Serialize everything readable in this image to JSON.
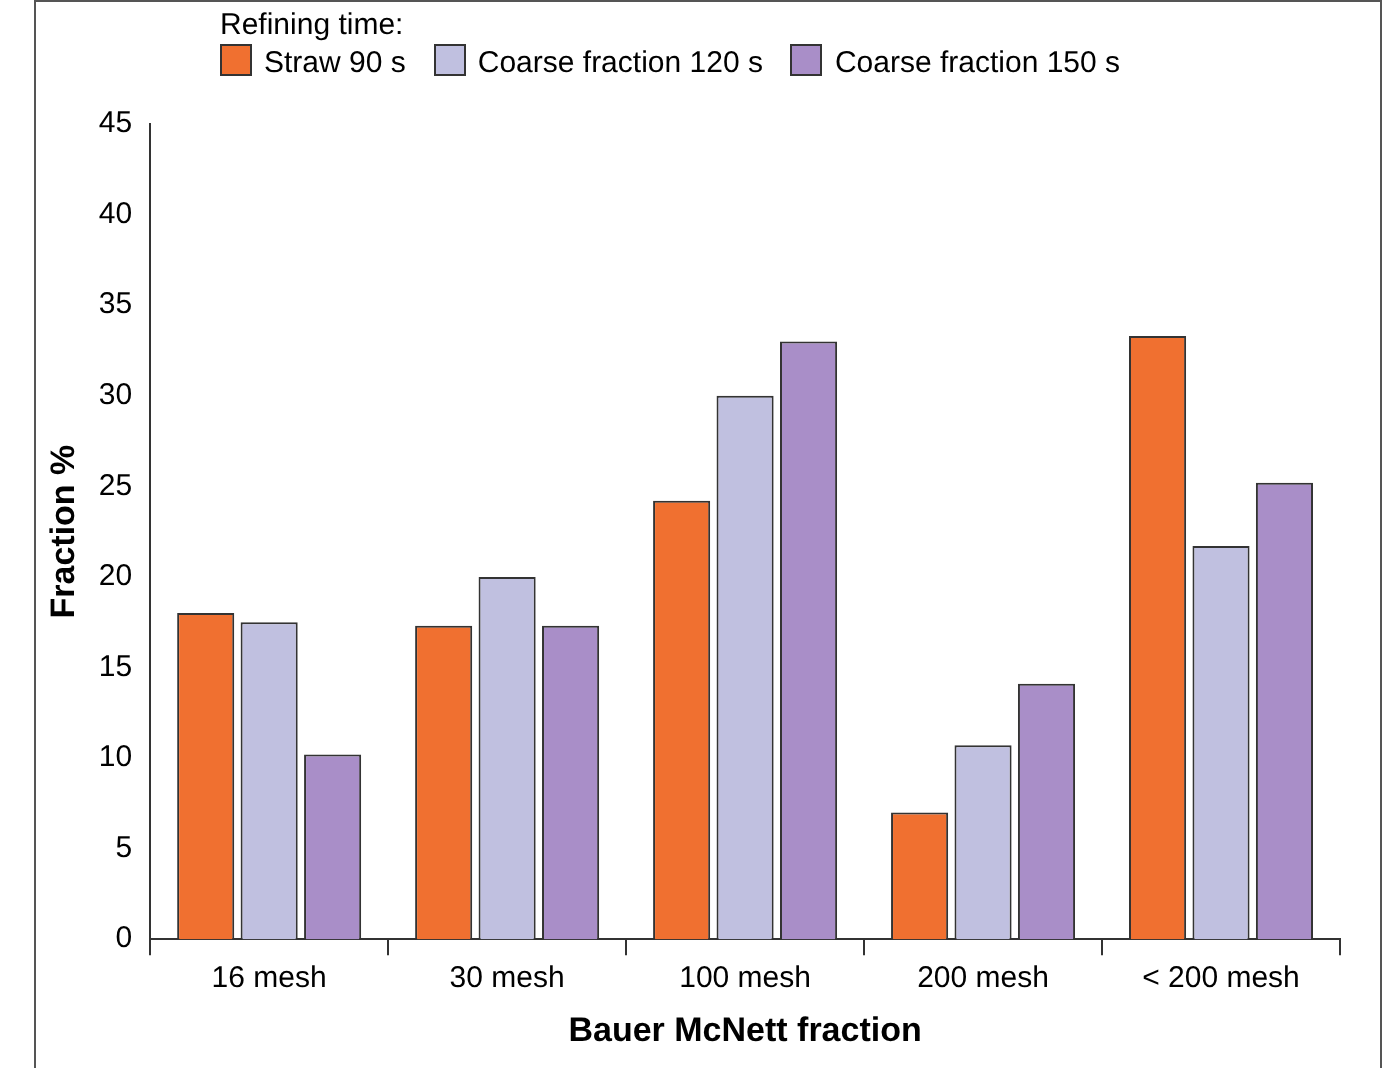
{
  "chart_data": {
    "type": "bar",
    "xlabel": "Bauer McNett fraction",
    "ylabel": "Fraction %",
    "legend_title": "Refining time:",
    "legend": "top left",
    "grid": false,
    "categories": [
      "16 mesh",
      "30 mesh",
      "100 mesh",
      "200 mesh",
      "< 200 mesh"
    ],
    "ylim": [
      0,
      45
    ],
    "yticks": [
      0,
      5,
      10,
      15,
      20,
      25,
      30,
      35,
      40,
      45
    ],
    "series": [
      {
        "name": "Straw 90 s",
        "color": "#f07030",
        "values": [
          18,
          17.3,
          24.2,
          7,
          33.3
        ]
      },
      {
        "name": "Coarse fraction 120 s",
        "color": "#c0c0e0",
        "values": [
          17.5,
          20,
          30,
          10.7,
          21.7
        ]
      },
      {
        "name": "Coarse fraction 150 s",
        "color": "#a98ec8",
        "values": [
          10.2,
          17.3,
          33,
          14.1,
          25.2
        ]
      }
    ]
  }
}
